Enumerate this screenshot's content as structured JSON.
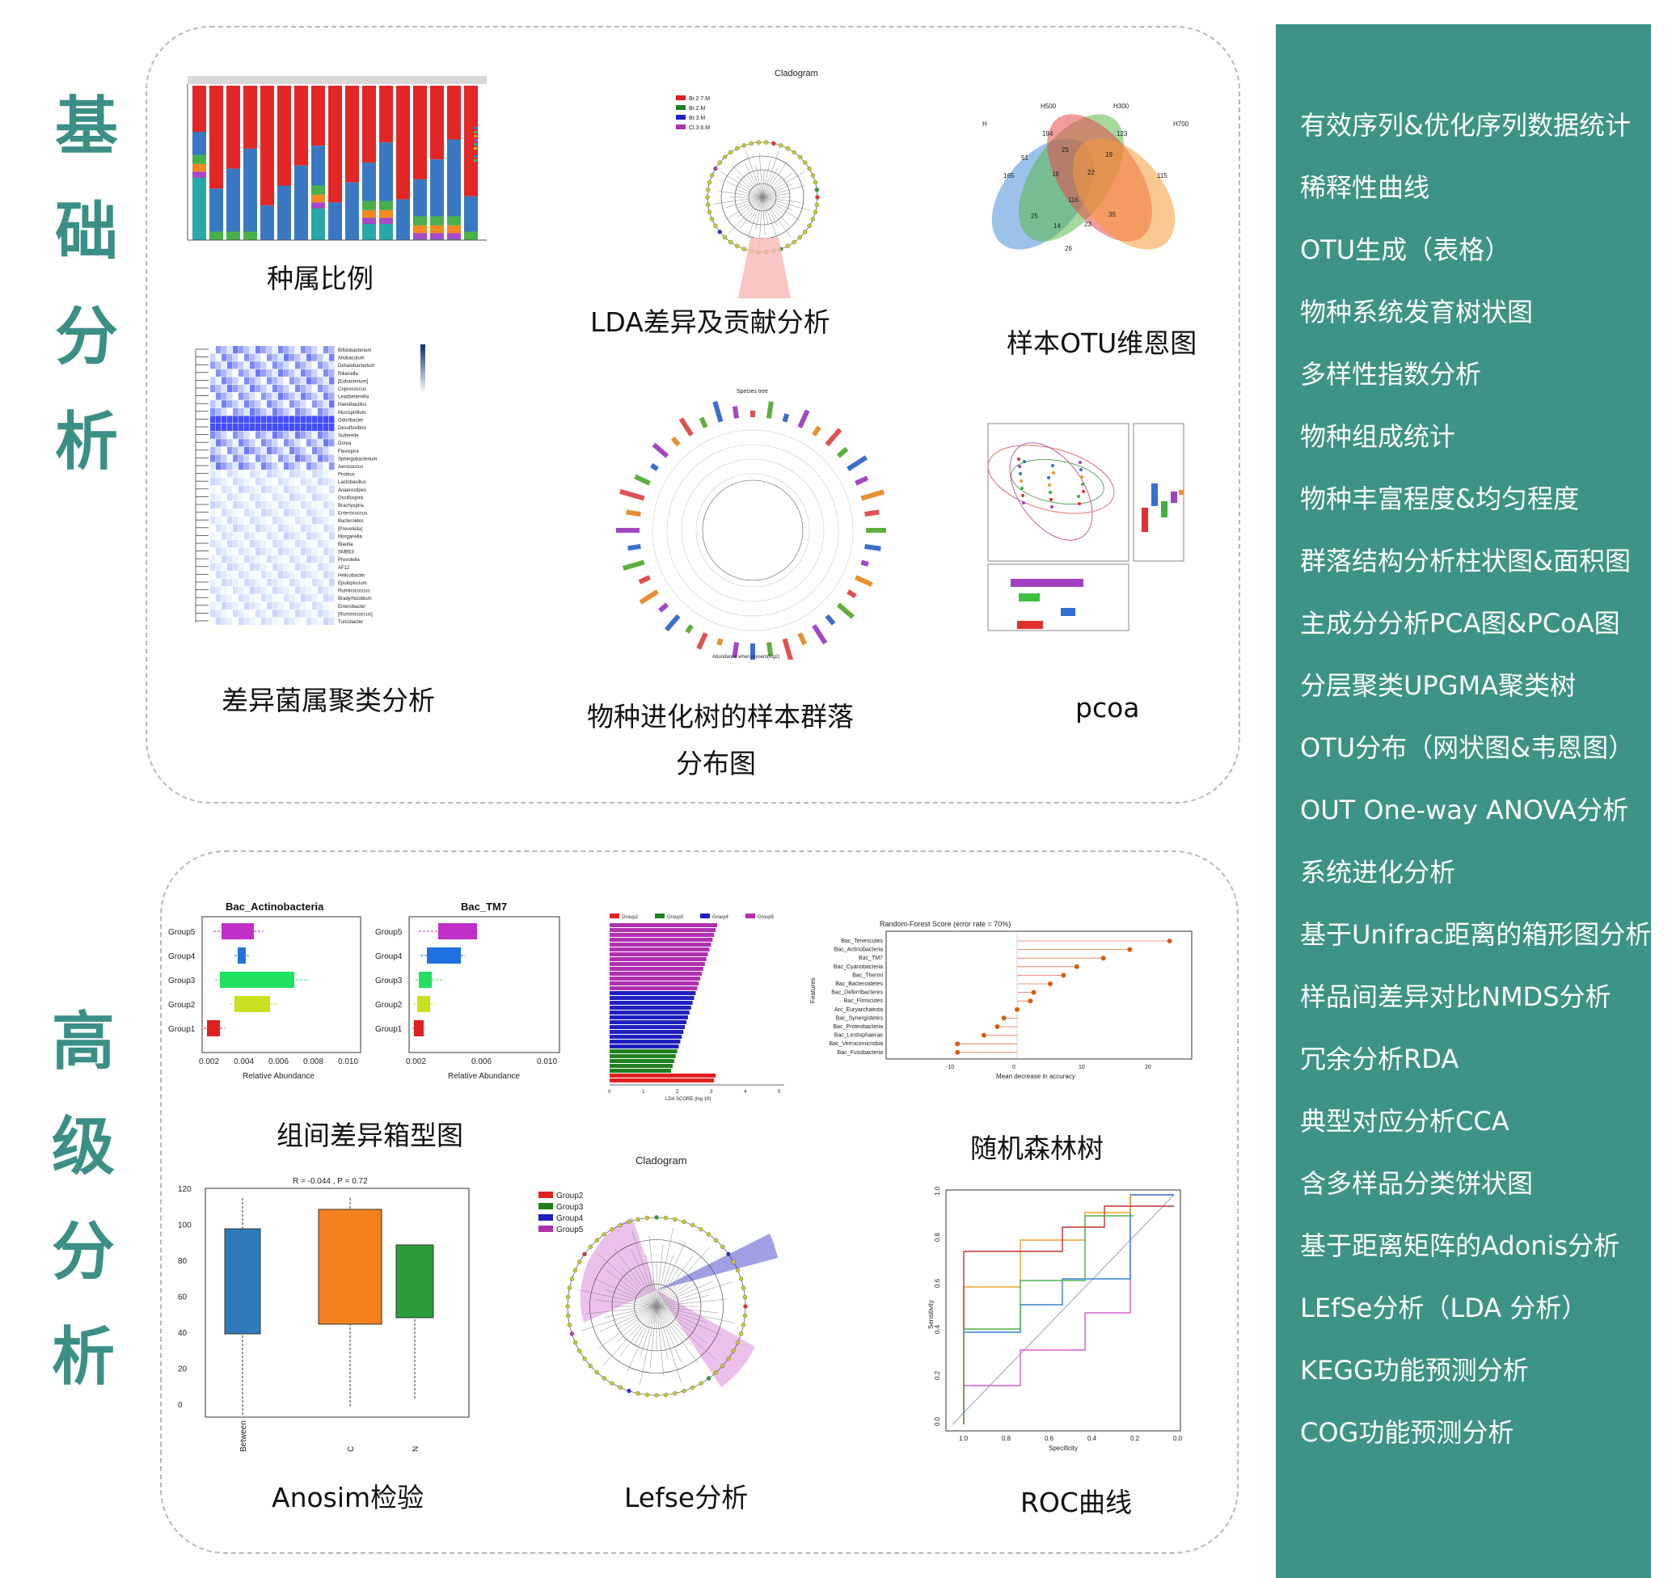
{
  "section_titles": {
    "basic": [
      "基",
      "础",
      "分",
      "析"
    ],
    "advanced": [
      "高",
      "级",
      "分",
      "析"
    ]
  },
  "sidebar": {
    "items": [
      "有效序列&优化序列数据统计",
      "稀释性曲线",
      "OTU生成（表格）",
      "物种系统发育树状图",
      "多样性指数分析",
      "物种组成统计",
      "物种丰富程度&均匀程度",
      "群落结构分析柱状图&面积图",
      "主成分分析PCA图&PCoA图",
      "分层聚类UPGMA聚类树",
      "OTU分布（网状图&韦恩图）",
      "OUT One-way ANOVA分析",
      "系统进化分析",
      "基于Unifrac距离的箱形图分析",
      "样品间差异对比NMDS分析",
      "冗余分析RDA",
      "典型对应分析CCA",
      "含多样品分类饼状图",
      "基于距离矩阵的Adonis分析",
      "LEfSe分析（LDA 分析）",
      "KEGG功能预测分析",
      "COG功能预测分析"
    ],
    "bg_color": "#3d9486"
  },
  "basic": {
    "captions": {
      "stacked_bar": "种属比例",
      "lda_cladogram": "LDA差异及贡献分析",
      "venn": "样本OTU维恩图",
      "heatmap": "差异菌属聚类分析",
      "species_tree_line1": "物种进化树的样本群落",
      "species_tree_line2": "分布图",
      "pcoa": "pcoa"
    },
    "cladogram_title": "Cladogram",
    "cladogram_legend": [
      "Br.2.7.M",
      "Br.2.M",
      "Br.3.M",
      "Cl.3.6.M"
    ],
    "venn": {
      "sets": [
        "H",
        "H500",
        "H300",
        "H700"
      ],
      "counts": [
        {
          "label": "165"
        },
        {
          "label": "194"
        },
        {
          "label": "123"
        },
        {
          "label": "115"
        },
        {
          "label": "51"
        },
        {
          "label": "25"
        },
        {
          "label": "19"
        },
        {
          "label": "18"
        },
        {
          "label": "22"
        },
        {
          "label": "116"
        },
        {
          "label": "25"
        },
        {
          "label": "14"
        },
        {
          "label": "23"
        },
        {
          "label": "35"
        },
        {
          "label": "26"
        }
      ]
    },
    "species_tree_title": "Species tree",
    "species_tree_axis": "Abundance when present(log2)",
    "heatmap_taxa": [
      "Bifidobacterium",
      "Allobaculum",
      "Dehalobacterium",
      "Rikenella",
      "[Eubacterium]",
      "Coprococcus",
      "Leadbetterella",
      "Paenibacillus",
      "Mucispirillum",
      "Odoribacter",
      "Desulfovibrio",
      "Sutterella",
      "Dorea",
      "Flexispira",
      "Sphingobacterium",
      "Aerococcus",
      "Proteus",
      "Lactobacillus",
      "Anaerostipes",
      "Oscillospira",
      "Brachyspira",
      "Enterococcus",
      "Bacteroides",
      "[Prevotella]",
      "Morganella",
      "Blautia",
      "SMB53",
      "Prevotella",
      "AF12",
      "Helicobacter",
      "Epulopiscium",
      "Ruminococcus",
      "Bradyrhizobium",
      "Enterobacter",
      "[Ruminococcus]",
      "Turicibacter"
    ]
  },
  "advanced": {
    "captions": {
      "boxplot": "组间差异箱型图",
      "random_forest": "随机森林树",
      "anosim": "Anosim检验",
      "lefse": "Lefse分析",
      "roc": "ROC曲线"
    },
    "box_actino": {
      "title": "Bac_Actinobacteria",
      "groups": [
        "Group5",
        "Group4",
        "Group3",
        "Group2",
        "Group1"
      ],
      "xticks": [
        "0.002",
        "0.004",
        "0.006",
        "0.008",
        "0.010"
      ],
      "xlabel": "Relative Abundance"
    },
    "box_tm7": {
      "title": "Bac_TM7",
      "groups": [
        "Group5",
        "Group4",
        "Group3",
        "Group2",
        "Group1"
      ],
      "xticks": [
        "0.002",
        "0.006",
        "0.010"
      ],
      "xlabel": "Relative Abundance"
    },
    "lda_bars": {
      "legend": [
        "Group2",
        "Group3",
        "Group4",
        "Group5"
      ],
      "xlabel": "LDA SCORE (log 10)",
      "xticks": [
        "0",
        "1",
        "2",
        "3",
        "4",
        "5"
      ]
    },
    "random_forest": {
      "title": "Random-Forest Score (error rate = 70%)",
      "xlabel": "Mean decrease in accuracy",
      "ylabel": "Features",
      "xticks": [
        "-10",
        "0",
        "10",
        "20"
      ],
      "features": [
        "Bac_Tenericutes",
        "Bac_Actinobacteria",
        "Bac_TM7",
        "Bac_Cyanobacteria",
        "Bac_Thermi",
        "Bac_Bacteroidetes",
        "Bac_Deferribacteres",
        "Bac_Firmicutes",
        "Arc_Euryarchaeota",
        "Bac_Synergistetes",
        "Bac_Proteobacteria",
        "Bac_Lentisphaerae",
        "Bac_Verrucomicrobia",
        "Bac_Fusobacteria"
      ],
      "scores": [
        23,
        17,
        13,
        9,
        7,
        5,
        2.5,
        2,
        0,
        -2,
        -3,
        -5,
        -9,
        -9
      ]
    },
    "anosim": {
      "title": "R = -0.044 , P = 0.72",
      "yticks": [
        "120",
        "100",
        "80",
        "60",
        "40",
        "20",
        "0"
      ],
      "groups": [
        "Between",
        "C",
        "N"
      ]
    },
    "lefse": {
      "title": "Cladogram",
      "legend": [
        "Group2",
        "Group3",
        "Group4",
        "Group5"
      ]
    },
    "roc": {
      "xlabel": "Specificity",
      "ylabel": "Sensitivity",
      "xticks": [
        "1.0",
        "0.8",
        "0.6",
        "0.4",
        "0.2",
        "0.0"
      ],
      "yticks": [
        "0.0",
        "0.2",
        "0.4",
        "0.6",
        "0.8",
        "1.0"
      ]
    }
  }
}
